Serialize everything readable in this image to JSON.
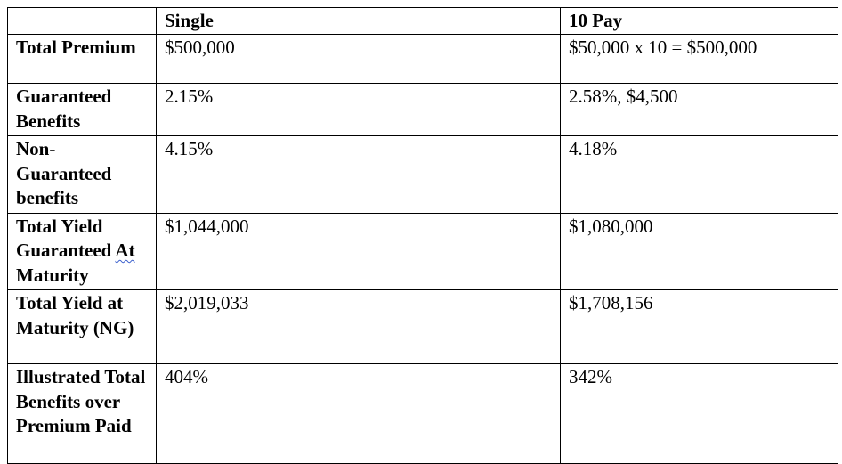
{
  "table": {
    "header": {
      "corner": "",
      "col_single": "Single",
      "col_10pay": "10 Pay"
    },
    "rows": [
      {
        "label": "Total Premium",
        "single": "$500,000",
        "ten_pay": "$50,000 x 10 = $500,000"
      },
      {
        "label": "Guaranteed Benefits",
        "single": "2.15%",
        "ten_pay": "2.58%, $4,500"
      },
      {
        "label": "Non-Guaranteed benefits",
        "single": "4.15%",
        "ten_pay": "4.18%"
      },
      {
        "label_part1": "Total Yield Guaranteed ",
        "label_part2": "At",
        "label_part3": " Maturity",
        "single": "$1,044,000",
        "ten_pay": "$1,080,000"
      },
      {
        "label": "Total Yield at Maturity (NG)",
        "single": "$2,019,033",
        "ten_pay": "$1,708,156"
      },
      {
        "label": "Illustrated Total Benefits over Premium Paid",
        "single": "404%",
        "ten_pay": "342%"
      }
    ]
  }
}
